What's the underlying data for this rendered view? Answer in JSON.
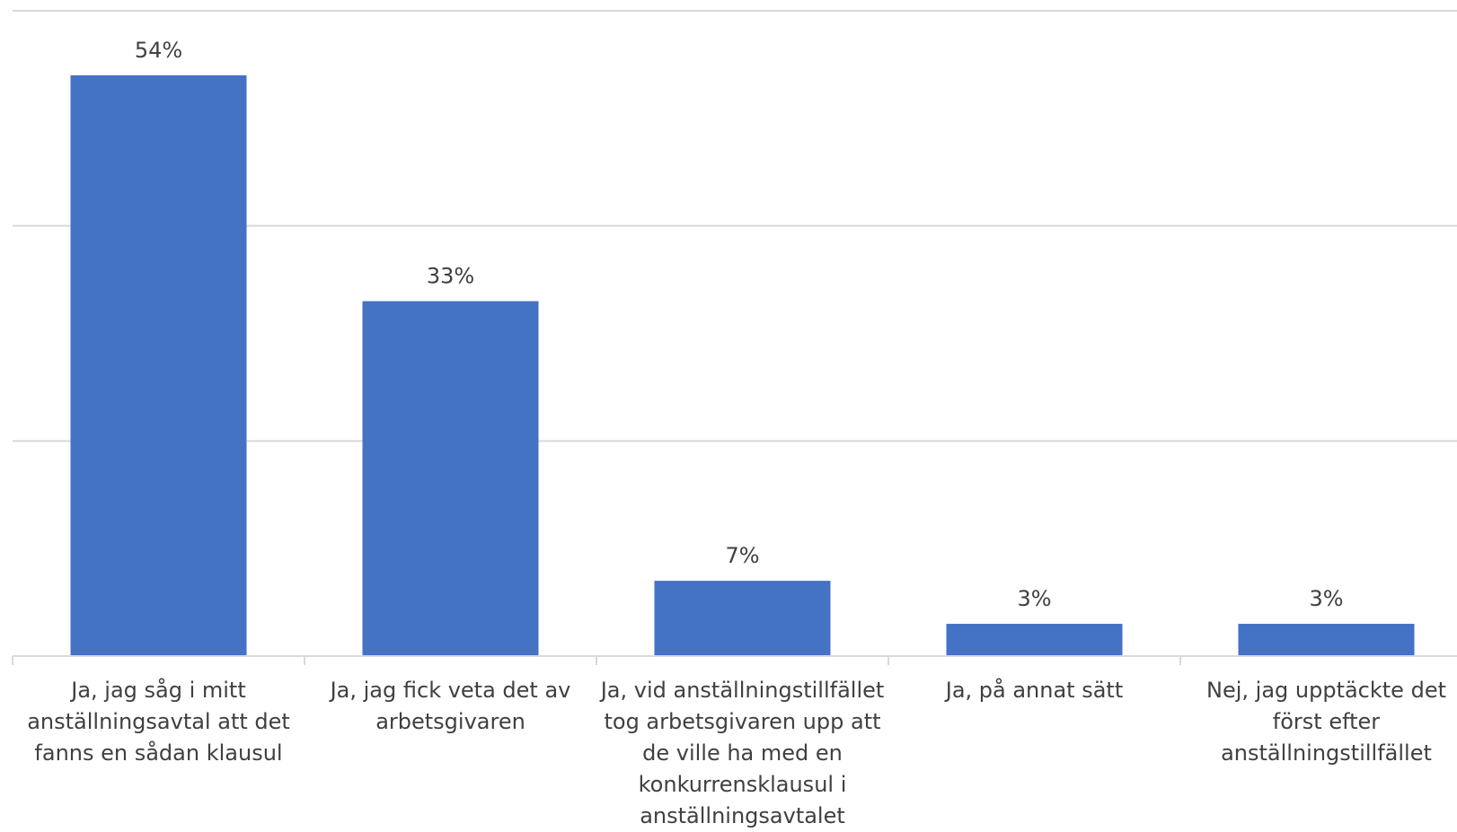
{
  "chart_data": {
    "type": "bar",
    "categories": [
      "Ja, jag såg i mitt anställningsavtal att det fanns en sådan klausul",
      "Ja, jag fick veta det av arbetsgivaren",
      "Ja, vid anställningstillfället tog arbetsgivaren upp att de ville ha med en konkurrensklausul i anställningsavtalet",
      "Ja, på annat sätt",
      "Nej, jag upptäckte det först efter anställningstillfället"
    ],
    "values": [
      54,
      33,
      7,
      3,
      3
    ],
    "data_labels": [
      "54%",
      "33%",
      "7%",
      "3%",
      "3%"
    ],
    "ylim": [
      0,
      60
    ],
    "grid": true,
    "bar_color": "#4472C4",
    "grid_color": "#D9D9D9",
    "label_color": "#404040"
  }
}
